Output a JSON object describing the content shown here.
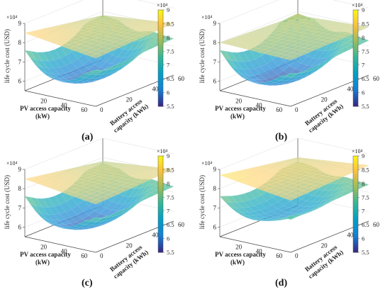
{
  "figure": {
    "subfigure_labels": [
      "(a)",
      "(b)",
      "(c)",
      "(d)"
    ]
  },
  "chart_data": [
    {
      "type": "surface3d",
      "label": "(a)",
      "zlabel": "life cycle cost (USD)",
      "xlabel": "PV access capacity (kW)",
      "ylabel": "Battery access capacity (kWh)",
      "x_ticks": [
        20,
        40,
        60
      ],
      "y_ticks": [
        0,
        20,
        40,
        60
      ],
      "z_ticks": [
        6,
        7,
        8,
        9
      ],
      "z_exponent": "×10⁴",
      "zlim": [
        55000,
        90000
      ],
      "colorbar": {
        "ticks": [
          5.5,
          6,
          6.5,
          7,
          7.5,
          8,
          8.5,
          9
        ],
        "exponent": "×10⁴",
        "colormap": "parula"
      },
      "surfaces": [
        {
          "name": "",
          "shape": "bowl",
          "min_cost": 57000,
          "corner_costs": [
            76000,
            72000,
            78000,
            74000
          ]
        },
        {
          "name": "",
          "shape": "tilted plane",
          "corner_costs": [
            85000,
            80000,
            78000,
            82000
          ]
        }
      ]
    },
    {
      "type": "surface3d",
      "label": "(b)",
      "zlabel": "life cycle cost (USD)",
      "xlabel": "PV access capacity (kW)",
      "ylabel": "Battery access capacity (kWh)",
      "x_ticks": [
        20,
        40,
        60
      ],
      "y_ticks": [
        0,
        20,
        40,
        60
      ],
      "z_ticks": [
        6,
        7,
        8,
        9
      ],
      "z_exponent": "×10⁴",
      "zlim": [
        55000,
        90000
      ],
      "colorbar": {
        "ticks": [
          5.5,
          6,
          6.5,
          7,
          7.5,
          8,
          8.5,
          9
        ],
        "exponent": "×10⁴",
        "colormap": "parula"
      },
      "surfaces": [
        {
          "name": "",
          "shape": "bowl",
          "min_cost": 56000,
          "corner_costs": [
            76000,
            70000,
            79000,
            73000
          ]
        },
        {
          "name": "",
          "shape": "tilted plane",
          "corner_costs": [
            80000,
            79000,
            78000,
            80000
          ]
        }
      ]
    },
    {
      "type": "surface3d",
      "label": "(c)",
      "zlabel": "life cycle cost (USD)",
      "xlabel": "PV access capacity (kW)",
      "ylabel": "Battery access capacity (kWh)",
      "x_ticks": [
        20,
        40,
        60
      ],
      "y_ticks": [
        0,
        20,
        40,
        60
      ],
      "z_ticks": [
        6,
        7,
        8,
        9
      ],
      "z_exponent": "×10⁴",
      "zlim": [
        55000,
        90000
      ],
      "colorbar": {
        "ticks": [
          5.5,
          6,
          6.5,
          7,
          7.5,
          8,
          8.5,
          9
        ],
        "exponent": "×10⁴",
        "colormap": "parula"
      },
      "surfaces": [
        {
          "name": "",
          "shape": "bowl",
          "min_cost": 57000,
          "corner_costs": [
            76000,
            71000,
            77000,
            73000
          ]
        },
        {
          "name": "",
          "shape": "tilted plane",
          "corner_costs": [
            85000,
            80000,
            78000,
            82000
          ]
        }
      ]
    },
    {
      "type": "surface3d",
      "label": "(d)",
      "zlabel": "life cycle cost (USD)",
      "xlabel": "PV access capacity (kW)",
      "ylabel": "Battery access capacity (kWh)",
      "x_ticks": [
        20,
        40,
        60
      ],
      "y_ticks": [
        0,
        20,
        40,
        60
      ],
      "z_ticks": [
        6,
        7,
        8,
        9
      ],
      "z_exponent": "×10⁴",
      "zlim": [
        55000,
        90000
      ],
      "colorbar": {
        "ticks": [
          5.5,
          6,
          6.5,
          7,
          7.5,
          8,
          8.5,
          9
        ],
        "exponent": "×10⁴",
        "colormap": "parula"
      },
      "surfaces": [
        {
          "name": "",
          "shape": "bowl",
          "min_cost": 63000,
          "corner_costs": [
            76000,
            72000,
            78000,
            74000
          ]
        },
        {
          "name": "",
          "shape": "tilted plane",
          "corner_costs": [
            87000,
            82000,
            80000,
            84000
          ]
        }
      ]
    }
  ]
}
